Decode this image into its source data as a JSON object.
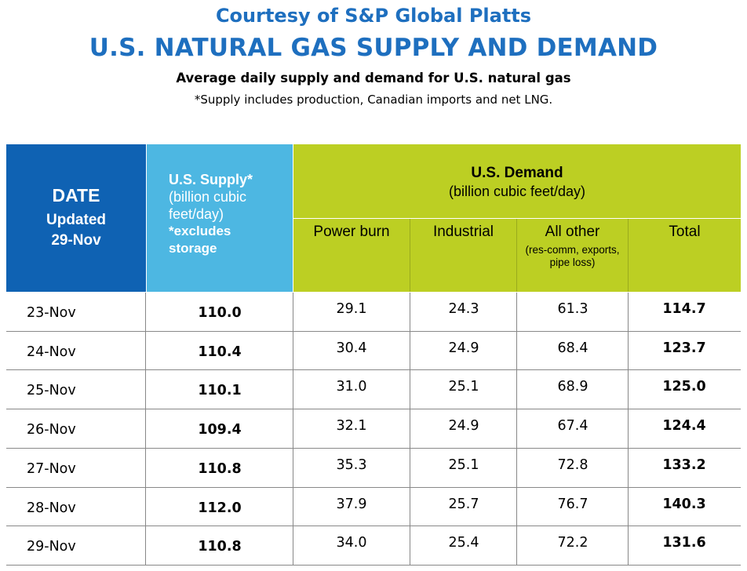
{
  "header": {
    "courtesy": "Courtesy of S&P Global Platts",
    "title": "U.S. NATURAL GAS SUPPLY AND DEMAND",
    "subtitle": "Average daily supply and demand for U.S. natural gas",
    "footnote": "*Supply includes production, Canadian imports and net LNG."
  },
  "table_header": {
    "date": "DATE",
    "updated": "Updated",
    "updated_date": "29-Nov",
    "supply_title": "U.S. Supply*",
    "supply_unit": "(billion cubic feet/day)",
    "supply_note": "*excludes storage",
    "demand_title": "U.S. Demand",
    "demand_unit": "(billion cubic feet/day)",
    "columns": {
      "power_burn": "Power burn",
      "industrial": "Industrial",
      "all_other": "All other",
      "all_other_note": "(res-comm, exports, pipe loss)",
      "total": "Total"
    }
  },
  "chart_data": {
    "type": "table",
    "columns": [
      "DATE",
      "U.S. Supply*",
      "Power burn",
      "Industrial",
      "All other",
      "Total"
    ],
    "rows": [
      {
        "date": "23-Nov",
        "supply": "110.0",
        "power_burn": "29.1",
        "industrial": "24.3",
        "all_other": "61.3",
        "total": "114.7"
      },
      {
        "date": "24-Nov",
        "supply": "110.4",
        "power_burn": "30.4",
        "industrial": "24.9",
        "all_other": "68.4",
        "total": "123.7"
      },
      {
        "date": "25-Nov",
        "supply": "110.1",
        "power_burn": "31.0",
        "industrial": "25.1",
        "all_other": "68.9",
        "total": "125.0"
      },
      {
        "date": "26-Nov",
        "supply": "109.4",
        "power_burn": "32.1",
        "industrial": "24.9",
        "all_other": "67.4",
        "total": "124.4"
      },
      {
        "date": "27-Nov",
        "supply": "110.8",
        "power_burn": "35.3",
        "industrial": "25.1",
        "all_other": "72.8",
        "total": "133.2"
      },
      {
        "date": "28-Nov",
        "supply": "112.0",
        "power_burn": "37.9",
        "industrial": "25.7",
        "all_other": "76.7",
        "total": "140.3"
      },
      {
        "date": "29-Nov",
        "supply": "110.8",
        "power_burn": "34.0",
        "industrial": "25.4",
        "all_other": "72.2",
        "total": "131.6"
      }
    ]
  },
  "colors": {
    "title_blue": "#1e6fbf",
    "date_header": "#0f62b3",
    "supply_header": "#4db7e2",
    "demand_header": "#bccf23"
  }
}
